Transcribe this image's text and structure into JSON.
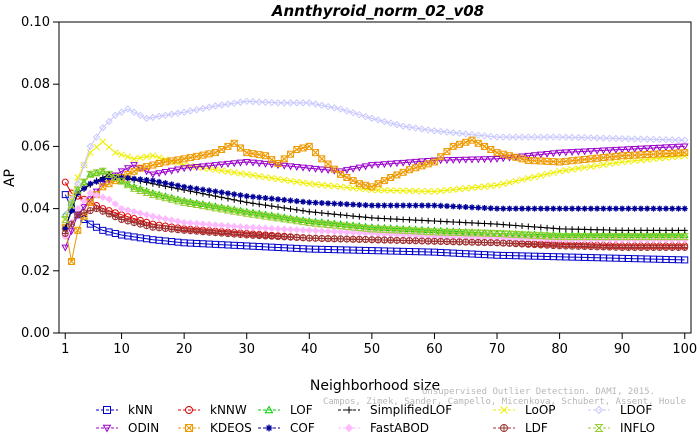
{
  "chart_data": {
    "type": "line",
    "title": "Annthyroid_norm_02_v08",
    "xlabel": "Neighborhood size",
    "ylabel": "AP",
    "xlim": [
      0,
      101
    ],
    "ylim": [
      0.0,
      0.1
    ],
    "xticks": [
      1,
      10,
      20,
      30,
      40,
      50,
      60,
      70,
      80,
      90,
      100
    ],
    "yticks": [
      "0.00",
      "0.02",
      "0.04",
      "0.06",
      "0.08",
      "0.10"
    ],
    "grid": false,
    "legend_position": "bottom",
    "series": [
      {
        "name": "kNN",
        "color": "#0000cc",
        "marker": "square",
        "points": [
          [
            1,
            0.0445
          ],
          [
            2,
            0.04
          ],
          [
            3,
            0.038
          ],
          [
            5,
            0.035
          ],
          [
            7,
            0.033
          ],
          [
            10,
            0.0315
          ],
          [
            15,
            0.03
          ],
          [
            20,
            0.029
          ],
          [
            30,
            0.028
          ],
          [
            40,
            0.027
          ],
          [
            50,
            0.0265
          ],
          [
            60,
            0.026
          ],
          [
            70,
            0.025
          ],
          [
            80,
            0.0245
          ],
          [
            90,
            0.024
          ],
          [
            100,
            0.0235
          ]
        ]
      },
      {
        "name": "kNNW",
        "color": "#dd0000",
        "marker": "circle",
        "points": [
          [
            1,
            0.0485
          ],
          [
            2,
            0.045
          ],
          [
            4,
            0.043
          ],
          [
            7,
            0.04
          ],
          [
            10,
            0.038
          ],
          [
            15,
            0.035
          ],
          [
            20,
            0.0335
          ],
          [
            30,
            0.032
          ],
          [
            40,
            0.0305
          ],
          [
            50,
            0.03
          ],
          [
            60,
            0.0295
          ],
          [
            70,
            0.029
          ],
          [
            80,
            0.0285
          ],
          [
            90,
            0.028
          ],
          [
            100,
            0.028
          ]
        ]
      },
      {
        "name": "LOF",
        "color": "#00cc00",
        "marker": "triangle",
        "points": [
          [
            1,
            0.038
          ],
          [
            3,
            0.046
          ],
          [
            5,
            0.051
          ],
          [
            7,
            0.052
          ],
          [
            9,
            0.05
          ],
          [
            12,
            0.047
          ],
          [
            15,
            0.045
          ],
          [
            20,
            0.0425
          ],
          [
            30,
            0.039
          ],
          [
            40,
            0.036
          ],
          [
            50,
            0.034
          ],
          [
            60,
            0.033
          ],
          [
            70,
            0.032
          ],
          [
            80,
            0.0315
          ],
          [
            90,
            0.0315
          ],
          [
            100,
            0.0315
          ]
        ]
      },
      {
        "name": "SimplifiedLOF",
        "color": "#000000",
        "marker": "plus",
        "points": [
          [
            1,
            0.034
          ],
          [
            3,
            0.045
          ],
          [
            6,
            0.049
          ],
          [
            8,
            0.051
          ],
          [
            10,
            0.05
          ],
          [
            15,
            0.048
          ],
          [
            20,
            0.046
          ],
          [
            30,
            0.042
          ],
          [
            40,
            0.039
          ],
          [
            50,
            0.037
          ],
          [
            60,
            0.036
          ],
          [
            70,
            0.035
          ],
          [
            80,
            0.0335
          ],
          [
            90,
            0.033
          ],
          [
            100,
            0.033
          ]
        ]
      },
      {
        "name": "LoOP",
        "color": "#eeee00",
        "marker": "cross",
        "points": [
          [
            1,
            0.037
          ],
          [
            3,
            0.05
          ],
          [
            5,
            0.058
          ],
          [
            7,
            0.0615
          ],
          [
            9,
            0.058
          ],
          [
            12,
            0.056
          ],
          [
            15,
            0.057
          ],
          [
            20,
            0.054
          ],
          [
            30,
            0.051
          ],
          [
            40,
            0.048
          ],
          [
            50,
            0.046
          ],
          [
            60,
            0.0455
          ],
          [
            70,
            0.0475
          ],
          [
            80,
            0.052
          ],
          [
            90,
            0.055
          ],
          [
            100,
            0.057
          ]
        ]
      },
      {
        "name": "LDOF",
        "color": "#c8c8ff",
        "marker": "diamond",
        "points": [
          [
            1,
            0.038
          ],
          [
            3,
            0.048
          ],
          [
            5,
            0.06
          ],
          [
            7,
            0.066
          ],
          [
            9,
            0.07
          ],
          [
            11,
            0.072
          ],
          [
            14,
            0.069
          ],
          [
            20,
            0.071
          ],
          [
            25,
            0.073
          ],
          [
            30,
            0.0745
          ],
          [
            35,
            0.074
          ],
          [
            40,
            0.074
          ],
          [
            45,
            0.072
          ],
          [
            50,
            0.069
          ],
          [
            55,
            0.0665
          ],
          [
            60,
            0.065
          ],
          [
            70,
            0.063
          ],
          [
            80,
            0.063
          ],
          [
            90,
            0.0625
          ],
          [
            100,
            0.062
          ]
        ]
      },
      {
        "name": "ODIN",
        "color": "#9900cc",
        "marker": "triangle-down",
        "points": [
          [
            1,
            0.0275
          ],
          [
            3,
            0.038
          ],
          [
            5,
            0.043
          ],
          [
            7,
            0.048
          ],
          [
            10,
            0.052
          ],
          [
            12,
            0.054
          ],
          [
            15,
            0.051
          ],
          [
            20,
            0.053
          ],
          [
            25,
            0.054
          ],
          [
            30,
            0.055
          ],
          [
            35,
            0.054
          ],
          [
            40,
            0.053
          ],
          [
            45,
            0.052
          ],
          [
            50,
            0.054
          ],
          [
            60,
            0.0555
          ],
          [
            70,
            0.056
          ],
          [
            80,
            0.058
          ],
          [
            90,
            0.059
          ],
          [
            100,
            0.06
          ]
        ]
      },
      {
        "name": "KDEOS",
        "color": "#ee9900",
        "marker": "square-x",
        "points": [
          [
            1,
            0.034
          ],
          [
            2,
            0.023
          ],
          [
            3,
            0.033
          ],
          [
            5,
            0.042
          ],
          [
            7,
            0.047
          ],
          [
            10,
            0.05
          ],
          [
            13,
            0.053
          ],
          [
            17,
            0.055
          ],
          [
            20,
            0.056
          ],
          [
            25,
            0.058
          ],
          [
            28,
            0.061
          ],
          [
            30,
            0.058
          ],
          [
            33,
            0.057
          ],
          [
            35,
            0.0545
          ],
          [
            38,
            0.059
          ],
          [
            40,
            0.06
          ],
          [
            42,
            0.056
          ],
          [
            45,
            0.051
          ],
          [
            48,
            0.048
          ],
          [
            50,
            0.047
          ],
          [
            53,
            0.05
          ],
          [
            56,
            0.0525
          ],
          [
            60,
            0.055
          ],
          [
            63,
            0.06
          ],
          [
            66,
            0.062
          ],
          [
            70,
            0.058
          ],
          [
            75,
            0.0555
          ],
          [
            80,
            0.055
          ],
          [
            85,
            0.056
          ],
          [
            90,
            0.057
          ],
          [
            95,
            0.0575
          ],
          [
            100,
            0.058
          ]
        ]
      },
      {
        "name": "COF",
        "color": "#000099",
        "marker": "asterisk",
        "points": [
          [
            1,
            0.0335
          ],
          [
            3,
            0.045
          ],
          [
            5,
            0.048
          ],
          [
            8,
            0.05
          ],
          [
            10,
            0.05
          ],
          [
            15,
            0.049
          ],
          [
            20,
            0.047
          ],
          [
            30,
            0.044
          ],
          [
            40,
            0.042
          ],
          [
            50,
            0.041
          ],
          [
            60,
            0.041
          ],
          [
            70,
            0.04
          ],
          [
            80,
            0.04
          ],
          [
            90,
            0.04
          ],
          [
            100,
            0.04
          ]
        ]
      },
      {
        "name": "FastABOD",
        "color": "#ffbbff",
        "marker": "diamond-filled",
        "points": [
          [
            1,
            0.031
          ],
          [
            3,
            0.04
          ],
          [
            5,
            0.045
          ],
          [
            8,
            0.043
          ],
          [
            10,
            0.04
          ],
          [
            15,
            0.0375
          ],
          [
            20,
            0.0355
          ],
          [
            30,
            0.034
          ],
          [
            40,
            0.033
          ],
          [
            50,
            0.032
          ],
          [
            60,
            0.031
          ],
          [
            70,
            0.0305
          ],
          [
            80,
            0.03
          ],
          [
            90,
            0.03
          ],
          [
            100,
            0.03
          ]
        ]
      },
      {
        "name": "LDF",
        "color": "#993333",
        "marker": "circle-plus",
        "points": [
          [
            1,
            0.032
          ],
          [
            3,
            0.038
          ],
          [
            6,
            0.04
          ],
          [
            10,
            0.0365
          ],
          [
            15,
            0.034
          ],
          [
            20,
            0.033
          ],
          [
            30,
            0.0315
          ],
          [
            40,
            0.0305
          ],
          [
            50,
            0.03
          ],
          [
            60,
            0.0295
          ],
          [
            70,
            0.029
          ],
          [
            80,
            0.028
          ],
          [
            90,
            0.0275
          ],
          [
            100,
            0.0275
          ]
        ]
      },
      {
        "name": "INFLO",
        "color": "#99cc33",
        "marker": "hourglass",
        "points": [
          [
            1,
            0.0365
          ],
          [
            3,
            0.046
          ],
          [
            5,
            0.051
          ],
          [
            7,
            0.052
          ],
          [
            9,
            0.05
          ],
          [
            12,
            0.0465
          ],
          [
            15,
            0.0445
          ],
          [
            20,
            0.042
          ],
          [
            30,
            0.0385
          ],
          [
            40,
            0.0355
          ],
          [
            50,
            0.0335
          ],
          [
            60,
            0.0325
          ],
          [
            70,
            0.032
          ],
          [
            80,
            0.031
          ],
          [
            90,
            0.031
          ],
          [
            100,
            0.031
          ]
        ]
      }
    ]
  },
  "watermark": {
    "line1": "Unsupervised Outlier Detection. DAMI, 2015.",
    "line2": "Campos, Zimek, Sander, Campello, Micenkova, Schubert, Assent, Houle"
  }
}
